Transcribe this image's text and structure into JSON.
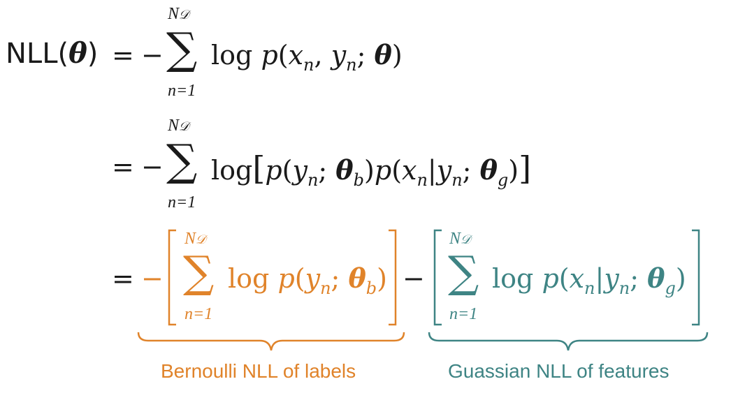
{
  "lhs": "NLL(θ)",
  "eq": "=",
  "minus": "−",
  "sum_upper": "N",
  "sum_upper_sub": "𝒟",
  "sum_lower": "n=1",
  "log": "log",
  "line1": {
    "p": "p(",
    "x": "x",
    "n": "n",
    "comma": ", ",
    "y": "y",
    "semi": "; ",
    "theta": "θ",
    "close": ")"
  },
  "line2": {
    "open": "[",
    "p1": "p(",
    "y": "y",
    "n": "n",
    "semi": "; ",
    "theta": "θ",
    "b": "b",
    "close1": ")",
    "p2": "p(",
    "x": "x",
    "bar": "|",
    "g": "g",
    "close2": ")",
    "close": "]"
  },
  "labels": {
    "bernoulli": "Bernoulli NLL of labels",
    "gaussian": "Guassian NLL of features"
  },
  "colors": {
    "orange": "#e0832a",
    "teal": "#3e8484",
    "text": "#1a1a1a"
  }
}
